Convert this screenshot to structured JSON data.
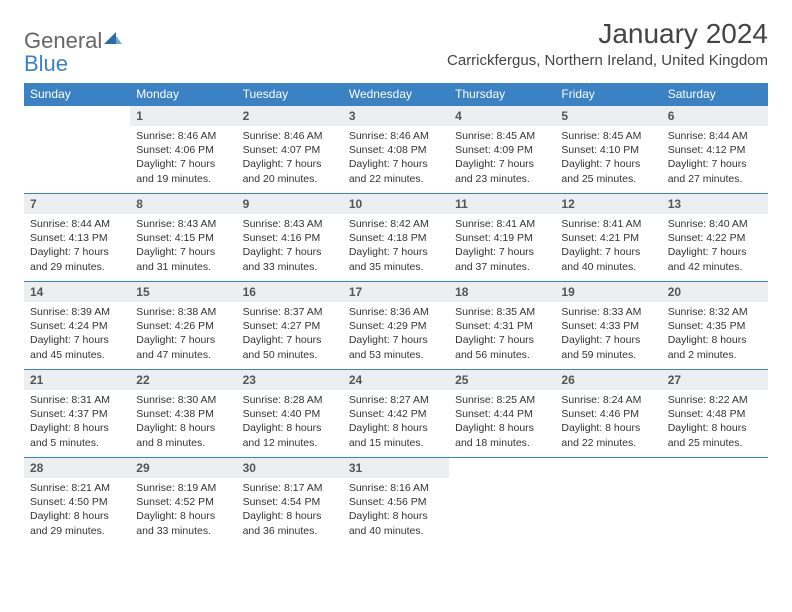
{
  "brand": {
    "part1": "General",
    "part2": "Blue"
  },
  "title": "January 2024",
  "location": "Carrickfergus, Northern Ireland, United Kingdom",
  "colors": {
    "header_bg": "#3b82c4",
    "header_fg": "#ffffff",
    "daynum_bg": "#eceeef",
    "rule": "#3b82c4",
    "text": "#333333",
    "background": "#ffffff"
  },
  "fonts": {
    "base": "Arial",
    "title_size": 28,
    "location_size": 15,
    "header_size": 12,
    "cell_size": 10.5
  },
  "weekdays": [
    "Sunday",
    "Monday",
    "Tuesday",
    "Wednesday",
    "Thursday",
    "Friday",
    "Saturday"
  ],
  "weeks": [
    [
      {
        "blank": true
      },
      {
        "num": "1",
        "sunrise": "Sunrise: 8:46 AM",
        "sunset": "Sunset: 4:06 PM",
        "dl1": "Daylight: 7 hours",
        "dl2": "and 19 minutes."
      },
      {
        "num": "2",
        "sunrise": "Sunrise: 8:46 AM",
        "sunset": "Sunset: 4:07 PM",
        "dl1": "Daylight: 7 hours",
        "dl2": "and 20 minutes."
      },
      {
        "num": "3",
        "sunrise": "Sunrise: 8:46 AM",
        "sunset": "Sunset: 4:08 PM",
        "dl1": "Daylight: 7 hours",
        "dl2": "and 22 minutes."
      },
      {
        "num": "4",
        "sunrise": "Sunrise: 8:45 AM",
        "sunset": "Sunset: 4:09 PM",
        "dl1": "Daylight: 7 hours",
        "dl2": "and 23 minutes."
      },
      {
        "num": "5",
        "sunrise": "Sunrise: 8:45 AM",
        "sunset": "Sunset: 4:10 PM",
        "dl1": "Daylight: 7 hours",
        "dl2": "and 25 minutes."
      },
      {
        "num": "6",
        "sunrise": "Sunrise: 8:44 AM",
        "sunset": "Sunset: 4:12 PM",
        "dl1": "Daylight: 7 hours",
        "dl2": "and 27 minutes."
      }
    ],
    [
      {
        "num": "7",
        "sunrise": "Sunrise: 8:44 AM",
        "sunset": "Sunset: 4:13 PM",
        "dl1": "Daylight: 7 hours",
        "dl2": "and 29 minutes."
      },
      {
        "num": "8",
        "sunrise": "Sunrise: 8:43 AM",
        "sunset": "Sunset: 4:15 PM",
        "dl1": "Daylight: 7 hours",
        "dl2": "and 31 minutes."
      },
      {
        "num": "9",
        "sunrise": "Sunrise: 8:43 AM",
        "sunset": "Sunset: 4:16 PM",
        "dl1": "Daylight: 7 hours",
        "dl2": "and 33 minutes."
      },
      {
        "num": "10",
        "sunrise": "Sunrise: 8:42 AM",
        "sunset": "Sunset: 4:18 PM",
        "dl1": "Daylight: 7 hours",
        "dl2": "and 35 minutes."
      },
      {
        "num": "11",
        "sunrise": "Sunrise: 8:41 AM",
        "sunset": "Sunset: 4:19 PM",
        "dl1": "Daylight: 7 hours",
        "dl2": "and 37 minutes."
      },
      {
        "num": "12",
        "sunrise": "Sunrise: 8:41 AM",
        "sunset": "Sunset: 4:21 PM",
        "dl1": "Daylight: 7 hours",
        "dl2": "and 40 minutes."
      },
      {
        "num": "13",
        "sunrise": "Sunrise: 8:40 AM",
        "sunset": "Sunset: 4:22 PM",
        "dl1": "Daylight: 7 hours",
        "dl2": "and 42 minutes."
      }
    ],
    [
      {
        "num": "14",
        "sunrise": "Sunrise: 8:39 AM",
        "sunset": "Sunset: 4:24 PM",
        "dl1": "Daylight: 7 hours",
        "dl2": "and 45 minutes."
      },
      {
        "num": "15",
        "sunrise": "Sunrise: 8:38 AM",
        "sunset": "Sunset: 4:26 PM",
        "dl1": "Daylight: 7 hours",
        "dl2": "and 47 minutes."
      },
      {
        "num": "16",
        "sunrise": "Sunrise: 8:37 AM",
        "sunset": "Sunset: 4:27 PM",
        "dl1": "Daylight: 7 hours",
        "dl2": "and 50 minutes."
      },
      {
        "num": "17",
        "sunrise": "Sunrise: 8:36 AM",
        "sunset": "Sunset: 4:29 PM",
        "dl1": "Daylight: 7 hours",
        "dl2": "and 53 minutes."
      },
      {
        "num": "18",
        "sunrise": "Sunrise: 8:35 AM",
        "sunset": "Sunset: 4:31 PM",
        "dl1": "Daylight: 7 hours",
        "dl2": "and 56 minutes."
      },
      {
        "num": "19",
        "sunrise": "Sunrise: 8:33 AM",
        "sunset": "Sunset: 4:33 PM",
        "dl1": "Daylight: 7 hours",
        "dl2": "and 59 minutes."
      },
      {
        "num": "20",
        "sunrise": "Sunrise: 8:32 AM",
        "sunset": "Sunset: 4:35 PM",
        "dl1": "Daylight: 8 hours",
        "dl2": "and 2 minutes."
      }
    ],
    [
      {
        "num": "21",
        "sunrise": "Sunrise: 8:31 AM",
        "sunset": "Sunset: 4:37 PM",
        "dl1": "Daylight: 8 hours",
        "dl2": "and 5 minutes."
      },
      {
        "num": "22",
        "sunrise": "Sunrise: 8:30 AM",
        "sunset": "Sunset: 4:38 PM",
        "dl1": "Daylight: 8 hours",
        "dl2": "and 8 minutes."
      },
      {
        "num": "23",
        "sunrise": "Sunrise: 8:28 AM",
        "sunset": "Sunset: 4:40 PM",
        "dl1": "Daylight: 8 hours",
        "dl2": "and 12 minutes."
      },
      {
        "num": "24",
        "sunrise": "Sunrise: 8:27 AM",
        "sunset": "Sunset: 4:42 PM",
        "dl1": "Daylight: 8 hours",
        "dl2": "and 15 minutes."
      },
      {
        "num": "25",
        "sunrise": "Sunrise: 8:25 AM",
        "sunset": "Sunset: 4:44 PM",
        "dl1": "Daylight: 8 hours",
        "dl2": "and 18 minutes."
      },
      {
        "num": "26",
        "sunrise": "Sunrise: 8:24 AM",
        "sunset": "Sunset: 4:46 PM",
        "dl1": "Daylight: 8 hours",
        "dl2": "and 22 minutes."
      },
      {
        "num": "27",
        "sunrise": "Sunrise: 8:22 AM",
        "sunset": "Sunset: 4:48 PM",
        "dl1": "Daylight: 8 hours",
        "dl2": "and 25 minutes."
      }
    ],
    [
      {
        "num": "28",
        "sunrise": "Sunrise: 8:21 AM",
        "sunset": "Sunset: 4:50 PM",
        "dl1": "Daylight: 8 hours",
        "dl2": "and 29 minutes."
      },
      {
        "num": "29",
        "sunrise": "Sunrise: 8:19 AM",
        "sunset": "Sunset: 4:52 PM",
        "dl1": "Daylight: 8 hours",
        "dl2": "and 33 minutes."
      },
      {
        "num": "30",
        "sunrise": "Sunrise: 8:17 AM",
        "sunset": "Sunset: 4:54 PM",
        "dl1": "Daylight: 8 hours",
        "dl2": "and 36 minutes."
      },
      {
        "num": "31",
        "sunrise": "Sunrise: 8:16 AM",
        "sunset": "Sunset: 4:56 PM",
        "dl1": "Daylight: 8 hours",
        "dl2": "and 40 minutes."
      },
      {
        "blank": true
      },
      {
        "blank": true
      },
      {
        "blank": true
      }
    ]
  ]
}
